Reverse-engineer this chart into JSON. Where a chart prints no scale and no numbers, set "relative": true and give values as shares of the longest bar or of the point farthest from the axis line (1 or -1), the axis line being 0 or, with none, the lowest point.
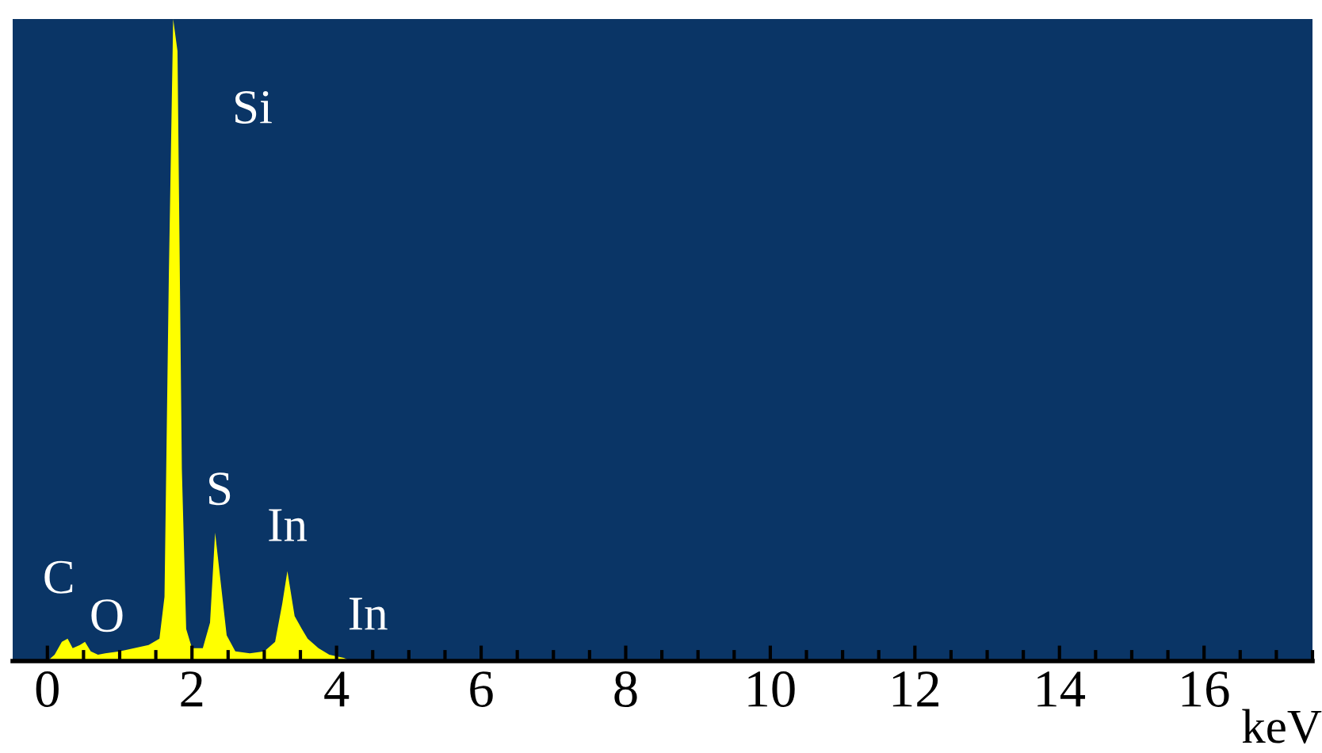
{
  "chart_data": {
    "type": "area",
    "relative": true,
    "xlabel": "keV",
    "x": [
      0.0,
      0.1,
      0.2,
      0.28,
      0.35,
      0.45,
      0.52,
      0.6,
      0.7,
      0.8,
      1.0,
      1.2,
      1.4,
      1.55,
      1.62,
      1.68,
      1.74,
      1.8,
      1.86,
      1.92,
      2.0,
      2.15,
      2.25,
      2.32,
      2.4,
      2.48,
      2.6,
      2.8,
      3.0,
      3.15,
      3.25,
      3.32,
      3.42,
      3.52,
      3.6,
      3.75,
      3.9,
      4.1,
      4.2
    ],
    "series": [
      {
        "color": "#ffff00",
        "values": [
          0.0,
          0.01,
          0.03,
          0.035,
          0.02,
          0.025,
          0.03,
          0.015,
          0.01,
          0.012,
          0.015,
          0.02,
          0.025,
          0.035,
          0.1,
          0.6,
          1.0,
          0.95,
          0.3,
          0.05,
          0.02,
          0.02,
          0.06,
          0.2,
          0.12,
          0.04,
          0.015,
          0.012,
          0.015,
          0.03,
          0.09,
          0.14,
          0.07,
          0.05,
          0.035,
          0.02,
          0.01,
          0.005,
          0.0
        ]
      }
    ],
    "xlim": [
      -0.48,
      17.5
    ],
    "xticks": [
      0,
      2,
      4,
      6,
      8,
      10,
      12,
      14,
      16
    ],
    "annotations": [
      {
        "text": "Si",
        "x": 1.74,
        "y": 1.0
      },
      {
        "text": "S",
        "x": 2.32,
        "y": 0.2
      },
      {
        "text": "In",
        "x": 3.32,
        "y": 0.14
      },
      {
        "text": "In",
        "x": 3.52,
        "y": 0.05
      },
      {
        "text": "C",
        "x": 0.28,
        "y": 0.035
      },
      {
        "text": "O",
        "x": 0.52,
        "y": 0.03
      }
    ],
    "grid": false,
    "legend": false
  }
}
